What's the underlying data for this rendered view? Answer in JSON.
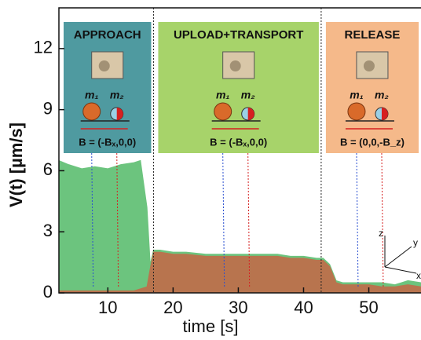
{
  "chart_data": {
    "type": "area",
    "x_label": "time [s]",
    "y_label": "V(t) [µm/s]",
    "x": [
      2.5,
      4,
      6,
      8,
      10,
      12,
      14,
      15,
      16,
      16.5,
      17,
      18,
      20,
      22,
      25,
      28,
      30,
      33,
      36,
      38,
      40,
      42,
      43,
      44,
      45,
      46,
      48,
      50,
      52,
      54,
      56,
      58
    ],
    "series": [
      {
        "color": "#6cc47e",
        "values": [
          6.5,
          6.3,
          6.1,
          6.2,
          6.1,
          6.3,
          6.4,
          6.5,
          4.2,
          1.4,
          2.1,
          2.1,
          2.0,
          2.0,
          1.9,
          1.9,
          1.9,
          1.9,
          1.9,
          1.8,
          1.8,
          1.7,
          1.7,
          1.4,
          0.6,
          0.5,
          0.5,
          0.5,
          0.5,
          0.4,
          0.6,
          0.5
        ]
      },
      {
        "color": "#b8744e",
        "values": [
          0.1,
          0.1,
          0.1,
          0.1,
          0.1,
          0.1,
          0.1,
          0.2,
          0.3,
          1.2,
          2.0,
          2.0,
          1.9,
          1.9,
          1.8,
          1.8,
          1.8,
          1.8,
          1.8,
          1.7,
          1.7,
          1.6,
          1.6,
          1.3,
          0.5,
          0.4,
          0.4,
          0.4,
          0.3,
          0.3,
          0.4,
          0.3
        ]
      }
    ],
    "xlim": [
      2.5,
      58
    ],
    "ylim": [
      0,
      14
    ],
    "xticks": [
      10,
      20,
      30,
      40,
      50
    ],
    "yticks": [
      0,
      3,
      6,
      9,
      12
    ],
    "dividers": [
      17,
      42.7
    ],
    "panels": [
      {
        "title": "APPROACH",
        "color": "#4f9aa0",
        "m1": "m₁",
        "m2": "m₂",
        "formula": "B = (-Bₓ,0,0)"
      },
      {
        "title": "UPLOAD+TRANSPORT",
        "color": "#a7d36a",
        "m1": "m₁",
        "m2": "m₂",
        "formula": "B = (-Bₓ,0,0)"
      },
      {
        "title": "RELEASE",
        "color": "#f5b98a",
        "m1": "m₁",
        "m2": "m₂",
        "formula": "B = (0,0,-B_z)"
      }
    ],
    "axes_icon": [
      "z",
      "y",
      "x"
    ]
  }
}
